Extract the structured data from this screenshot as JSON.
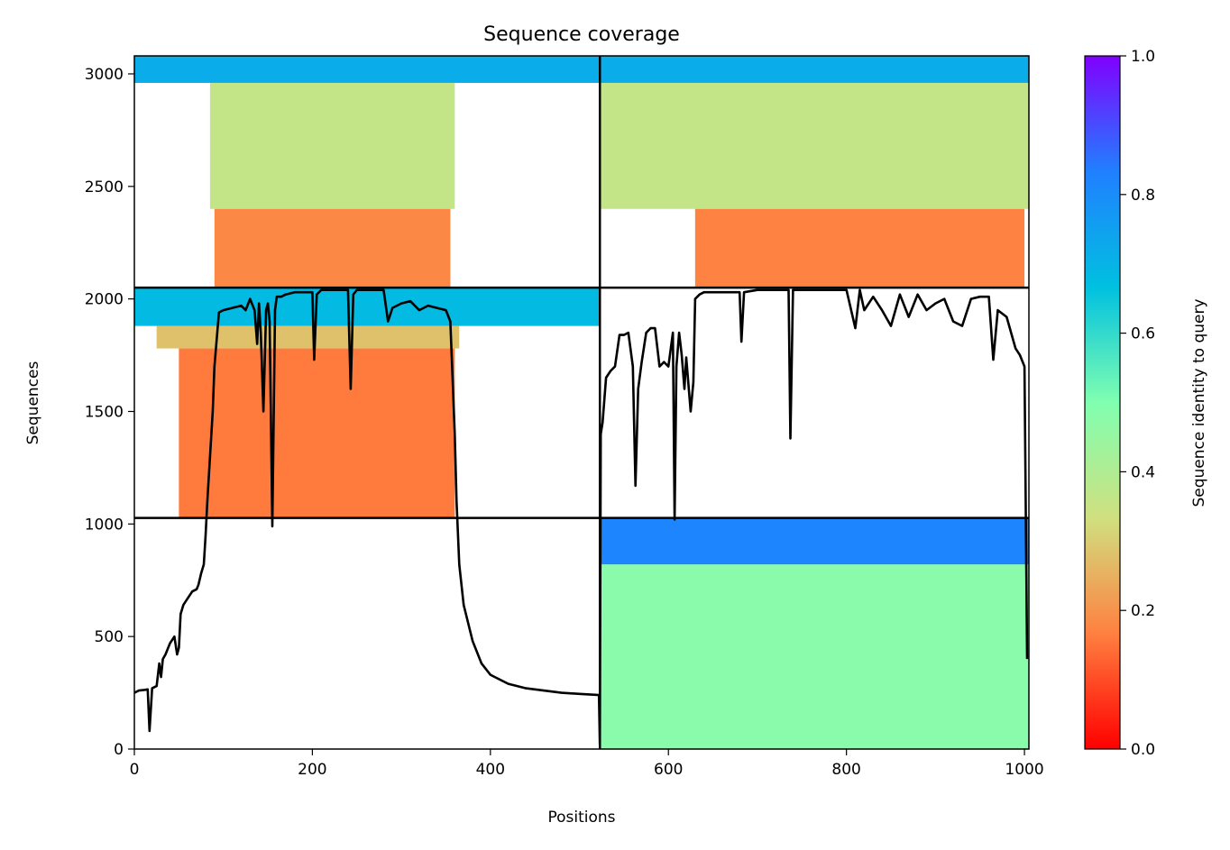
{
  "chart_data": {
    "type": "heatmap",
    "title": "Sequence coverage",
    "xlabel": "Positions",
    "ylabel": "Sequences",
    "colorbar_label": "Sequence identity to query",
    "xlim": [
      0,
      1005
    ],
    "ylim": [
      0,
      3080
    ],
    "x_ticks": [
      0,
      200,
      400,
      600,
      800,
      1000
    ],
    "y_ticks": [
      0,
      500,
      1000,
      1500,
      2000,
      2500,
      3000
    ],
    "colorbar_ticks": [
      0.0,
      0.2,
      0.4,
      0.6,
      0.8,
      1.0
    ],
    "colorbar_tick_labels": [
      "0.0",
      "0.2",
      "0.4",
      "0.6",
      "0.8",
      "1.0"
    ],
    "colormap": "rainbow",
    "colormap_stops": [
      "#ff0000",
      "#ff8040",
      "#d0e080",
      "#80ffb0",
      "#00c0e0",
      "#2080ff",
      "#8000ff"
    ],
    "chain_boundary_position": 523,
    "chain_boundary_sequences": [
      1027,
      2050
    ],
    "blocks": [
      {
        "x0": 0,
        "x1": 523,
        "y0": 2960,
        "y1": 3080,
        "identity": 0.72,
        "note_shape": "full"
      },
      {
        "x0": 85,
        "x1": 360,
        "y0": 2400,
        "y1": 2960,
        "identity": 0.36
      },
      {
        "x0": 90,
        "x1": 355,
        "y0": 2050,
        "y1": 2400,
        "identity": 0.18
      },
      {
        "x0": 523,
        "x1": 1005,
        "y0": 2960,
        "y1": 3080,
        "identity": 0.72
      },
      {
        "x0": 523,
        "x1": 1005,
        "y0": 2400,
        "y1": 2960,
        "identity": 0.36
      },
      {
        "x0": 630,
        "x1": 1000,
        "y0": 2050,
        "y1": 2400,
        "identity": 0.17
      },
      {
        "x0": 0,
        "x1": 523,
        "y0": 1880,
        "y1": 2050,
        "identity": 0.68
      },
      {
        "x0": 25,
        "x1": 365,
        "y0": 1780,
        "y1": 1880,
        "identity": 0.28
      },
      {
        "x0": 50,
        "x1": 360,
        "y0": 1027,
        "y1": 1780,
        "identity": 0.16
      },
      {
        "x0": 523,
        "x1": 1005,
        "y0": 820,
        "y1": 1027,
        "identity": 0.82
      },
      {
        "x0": 523,
        "x1": 1005,
        "y0": 0,
        "y1": 820,
        "identity": 0.48
      }
    ],
    "coverage_line": {
      "x": [
        0,
        5,
        10,
        15,
        17,
        20,
        25,
        28,
        30,
        32,
        35,
        40,
        45,
        48,
        50,
        52,
        55,
        60,
        65,
        70,
        72,
        75,
        78,
        80,
        82,
        85,
        88,
        90,
        95,
        100,
        110,
        120,
        125,
        130,
        135,
        138,
        140,
        142,
        145,
        148,
        150,
        152,
        155,
        158,
        160,
        165,
        170,
        180,
        190,
        200,
        202,
        205,
        210,
        220,
        230,
        240,
        243,
        246,
        250,
        260,
        270,
        280,
        285,
        290,
        300,
        310,
        320,
        325,
        330,
        340,
        350,
        355,
        360,
        362,
        365,
        370,
        380,
        390,
        400,
        420,
        440,
        460,
        480,
        500,
        522,
        523,
        524,
        526,
        530,
        535,
        540,
        545,
        550,
        555,
        560,
        563,
        566,
        570,
        575,
        580,
        585,
        590,
        595,
        600,
        605,
        607,
        609,
        612,
        615,
        618,
        620,
        625,
        628,
        630,
        635,
        640,
        660,
        680,
        682,
        685,
        700,
        720,
        735,
        737,
        740,
        745,
        760,
        780,
        800,
        810,
        815,
        820,
        830,
        840,
        850,
        860,
        870,
        880,
        890,
        900,
        910,
        920,
        930,
        940,
        950,
        960,
        965,
        970,
        980,
        990,
        995,
        1000,
        1003,
        1005
      ],
      "y": [
        250,
        260,
        262,
        265,
        80,
        270,
        280,
        380,
        320,
        400,
        420,
        470,
        500,
        420,
        450,
        600,
        640,
        670,
        700,
        710,
        730,
        780,
        820,
        950,
        1100,
        1300,
        1500,
        1700,
        1940,
        1950,
        1960,
        1970,
        1950,
        2000,
        1950,
        1800,
        1980,
        1850,
        1500,
        1950,
        1980,
        1900,
        990,
        1950,
        2010,
        2010,
        2020,
        2030,
        2030,
        2030,
        1730,
        2020,
        2040,
        2040,
        2040,
        2040,
        1600,
        2020,
        2040,
        2040,
        2040,
        2040,
        1900,
        1960,
        1980,
        1990,
        1950,
        1960,
        1970,
        1960,
        1950,
        1900,
        1400,
        1100,
        820,
        640,
        480,
        380,
        330,
        290,
        270,
        260,
        250,
        245,
        240,
        20,
        1400,
        1450,
        1650,
        1680,
        1700,
        1840,
        1840,
        1850,
        1700,
        1170,
        1600,
        1720,
        1850,
        1870,
        1870,
        1700,
        1720,
        1700,
        1850,
        1020,
        1700,
        1850,
        1750,
        1600,
        1740,
        1500,
        1630,
        2000,
        2020,
        2030,
        2030,
        2030,
        1810,
        2030,
        2040,
        2040,
        2040,
        1380,
        2040,
        2040,
        2040,
        2040,
        2040,
        1870,
        2040,
        1950,
        2010,
        1950,
        1880,
        2020,
        1920,
        2020,
        1950,
        1980,
        2000,
        1900,
        1880,
        2000,
        2010,
        2010,
        1730,
        1950,
        1920,
        1780,
        1750,
        1700,
        400
      ]
    }
  }
}
